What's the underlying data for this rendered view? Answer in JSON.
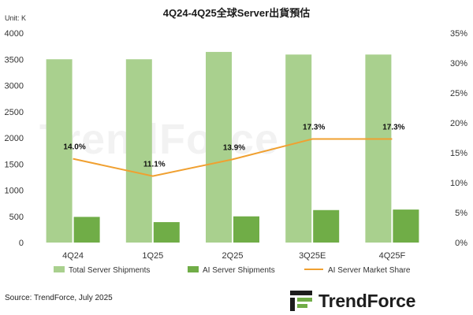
{
  "title": "4Q24-4Q25全球Server出貨預估",
  "unit": "Unit: K",
  "source": "Source: TrendForce, July 2025",
  "brand": {
    "name": "TrendForce",
    "watermark": "TrendForce"
  },
  "colors": {
    "total": "#a9d08e",
    "ai": "#70ad47",
    "share": "#f0a030"
  },
  "chart_data": {
    "type": "bar",
    "categories": [
      "4Q24",
      "1Q25",
      "2Q25",
      "3Q25E",
      "4Q25F"
    ],
    "series": [
      {
        "name": "Total Server Shipments",
        "type": "bar",
        "axis": "left",
        "values": [
          3500,
          3500,
          3640,
          3590,
          3590
        ]
      },
      {
        "name": "AI Server Shipments",
        "type": "bar",
        "axis": "left",
        "values": [
          490,
          390,
          500,
          620,
          630
        ]
      },
      {
        "name": "AI Server Market Share",
        "type": "line",
        "axis": "right",
        "values": [
          14.0,
          11.1,
          13.9,
          17.3,
          17.3
        ],
        "labels": [
          "14.0%",
          "11.1%",
          "13.9%",
          "17.3%",
          "17.3%"
        ]
      }
    ],
    "title": "4Q24-4Q25全球Server出貨預估",
    "ylabel": "Unit: K",
    "ylim": [
      0,
      4000
    ],
    "yticks": [
      "0",
      "500",
      "1000",
      "1500",
      "2000",
      "2500",
      "3000",
      "3500",
      "4000"
    ],
    "y2lim": [
      0,
      35
    ],
    "y2ticks": [
      "0%",
      "5%",
      "10%",
      "15%",
      "20%",
      "25%",
      "30%",
      "35%"
    ],
    "grid": false,
    "legend": "bottom"
  }
}
